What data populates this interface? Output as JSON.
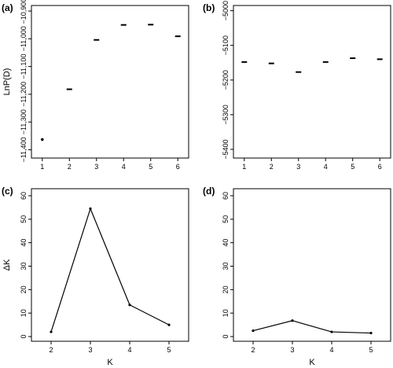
{
  "chart_data": [
    {
      "panel_label": "(a)",
      "type": "scatter",
      "xlabel": "",
      "ylabel": "LnP(D)",
      "xlim": [
        0.6,
        6.4
      ],
      "ylim": [
        -11430,
        -10880
      ],
      "xticks": [
        1,
        2,
        3,
        4,
        5,
        6
      ],
      "yticks": [
        -11400,
        -11300,
        -11200,
        -11100,
        -11000,
        -10900
      ],
      "ytick_labels": [
        "−11,400",
        "−11,300",
        "−11,200",
        "−11,100",
        "−11,000",
        "−10,900"
      ],
      "y_tick_labels_rotated": true,
      "grid": false,
      "points": [
        {
          "x": 1,
          "y": -11363
        },
        {
          "x": 2,
          "y": -11182
        },
        {
          "x": 3,
          "y": -11004
        },
        {
          "x": 4,
          "y": -10950
        },
        {
          "x": 5,
          "y": -10949
        },
        {
          "x": 6,
          "y": -10991
        }
      ],
      "marker": "dash"
    },
    {
      "panel_label": "(b)",
      "type": "scatter",
      "xlabel": "",
      "ylabel": "",
      "xlim": [
        0.6,
        6.4
      ],
      "ylim": [
        -5425,
        -4985
      ],
      "xticks": [
        1,
        2,
        3,
        4,
        5,
        6
      ],
      "yticks": [
        -5400,
        -5300,
        -5200,
        -5100,
        -5000
      ],
      "ytick_labels": [
        "−5400",
        "−5300",
        "−5200",
        "−5100",
        "−5000"
      ],
      "y_tick_labels_rotated": true,
      "grid": false,
      "points": [
        {
          "x": 1,
          "y": -5148
        },
        {
          "x": 2,
          "y": -5152
        },
        {
          "x": 3,
          "y": -5177
        },
        {
          "x": 4,
          "y": -5148
        },
        {
          "x": 5,
          "y": -5137
        },
        {
          "x": 6,
          "y": -5140
        }
      ],
      "marker": "dash"
    },
    {
      "panel_label": "(c)",
      "type": "line",
      "xlabel": "K",
      "ylabel": "ΔK",
      "xlim": [
        1.5,
        5.5
      ],
      "ylim": [
        -2,
        63
      ],
      "xticks": [
        2,
        3,
        4,
        5
      ],
      "yticks": [
        0,
        10,
        20,
        30,
        40,
        50,
        60
      ],
      "ytick_labels": [
        "0",
        "10",
        "20",
        "30",
        "40",
        "50",
        "60"
      ],
      "y_tick_labels_rotated": true,
      "grid": false,
      "x": [
        2,
        3,
        4,
        5
      ],
      "values": [
        2,
        54.5,
        13.5,
        5
      ]
    },
    {
      "panel_label": "(d)",
      "type": "line",
      "xlabel": "K",
      "ylabel": "",
      "xlim": [
        1.5,
        5.5
      ],
      "ylim": [
        -2,
        63
      ],
      "xticks": [
        2,
        3,
        4,
        5
      ],
      "yticks": [
        0,
        10,
        20,
        30,
        40,
        50,
        60
      ],
      "ytick_labels": [
        "0",
        "10",
        "20",
        "30",
        "40",
        "50",
        "60"
      ],
      "y_tick_labels_rotated": true,
      "grid": false,
      "x": [
        2,
        3,
        4,
        5
      ],
      "values": [
        2.5,
        6.8,
        2,
        1.5
      ]
    }
  ]
}
